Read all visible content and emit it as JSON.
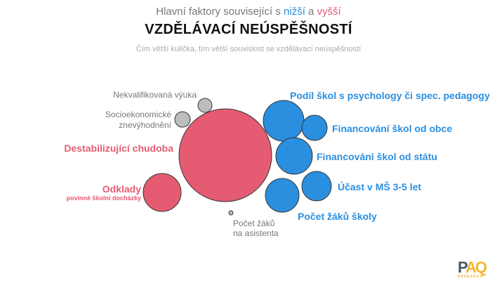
{
  "header": {
    "subtitle_pre": "Hlavní faktory související s ",
    "subtitle_low": "nižší",
    "subtitle_mid": " a ",
    "subtitle_high": "vyšší",
    "title": "VZDĚLÁVACÍ NEÚSPĚŠNOSTÍ",
    "note": "Čím větší kulička, tím větší souvislost se vzdělávací neúspěšností"
  },
  "colors": {
    "lower": "#2b8fe0",
    "higher": "#e55c72",
    "neutral": "#bdbdbd"
  },
  "factors": [
    {
      "label": "Destabilizující chudoba",
      "effect": "higher"
    },
    {
      "label": "Odklady",
      "sublabel": "povinné školní docházky",
      "effect": "higher"
    },
    {
      "label": "Nekvalifikovaná výuka",
      "effect": "neutral"
    },
    {
      "label": "Socioekonomické znevýhodnění",
      "line1": "Socioekonomické",
      "line2": "znevýhodnění",
      "effect": "neutral"
    },
    {
      "label": "Počet žáků na asistenta",
      "line1": "Počet žáků",
      "line2": "na asistenta",
      "effect": "neutral"
    },
    {
      "label": "Podíl škol s psychology či spec. pedagogy",
      "effect": "lower"
    },
    {
      "label": "Financování škol od obce",
      "effect": "lower"
    },
    {
      "label": "Financování škol od státu",
      "effect": "lower"
    },
    {
      "label": "Účast v MŠ 3-5 let",
      "effect": "lower"
    },
    {
      "label": "Počet žáků školy",
      "effect": "lower"
    }
  ],
  "logo": {
    "text": "PAQ",
    "subtext": "RESEARCH"
  }
}
